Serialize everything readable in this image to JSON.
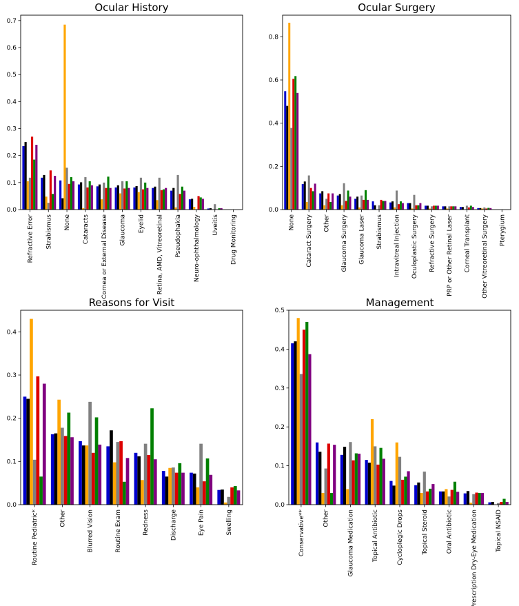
{
  "colors": [
    "#0000cc",
    "#000000",
    "#ffa500",
    "#808080",
    "#dd0000",
    "#008000",
    "#800080"
  ],
  "chart_data": [
    {
      "type": "bar",
      "title": "Ocular History",
      "ylim": [
        0,
        0.72
      ],
      "yticks": [
        0.0,
        0.1,
        0.2,
        0.3,
        0.4,
        0.5,
        0.6,
        0.7
      ],
      "tick_labels": [
        "0.0",
        "0.1",
        "0.2",
        "0.3",
        "0.4",
        "0.5",
        "0.6",
        "0.7"
      ],
      "categories": [
        "Refractive Error",
        "Strabismus",
        "None",
        "Cataracts",
        "Cornea or External Disease",
        "Glaucoma",
        "Eyelid",
        "Retina, AMD, Vitreoretinal",
        "Pseudophakia",
        "Neuro-ophthalmology",
        "Uveitis",
        "Drug Monitoring"
      ],
      "series": [
        {
          "values": [
            0.235,
            0.118,
            0.108,
            0.093,
            0.086,
            0.082,
            0.082,
            0.08,
            0.07,
            0.038,
            0.004,
            0.0
          ]
        },
        {
          "values": [
            0.25,
            0.128,
            0.042,
            0.101,
            0.093,
            0.09,
            0.087,
            0.085,
            0.08,
            0.04,
            0.005,
            0.0
          ]
        },
        {
          "values": [
            0.105,
            0.048,
            0.685,
            0.005,
            0.038,
            0.06,
            0.065,
            0.035,
            0.008,
            0.01,
            0.0,
            0.0
          ]
        },
        {
          "values": [
            0.118,
            0.025,
            0.155,
            0.12,
            0.1,
            0.105,
            0.118,
            0.118,
            0.128,
            0.0,
            0.02,
            0.0
          ]
        },
        {
          "values": [
            0.27,
            0.145,
            0.095,
            0.082,
            0.08,
            0.078,
            0.075,
            0.072,
            0.058,
            0.05,
            0.0,
            0.0
          ]
        },
        {
          "values": [
            0.185,
            0.058,
            0.12,
            0.105,
            0.122,
            0.105,
            0.1,
            0.075,
            0.085,
            0.045,
            0.005,
            0.0
          ]
        },
        {
          "values": [
            0.24,
            0.125,
            0.105,
            0.09,
            0.08,
            0.08,
            0.08,
            0.08,
            0.07,
            0.04,
            0.005,
            0.0
          ]
        }
      ]
    },
    {
      "type": "bar",
      "title": "Ocular Surgery",
      "ylim": [
        0,
        0.9
      ],
      "yticks": [
        0.0,
        0.2,
        0.4,
        0.6,
        0.8
      ],
      "tick_labels": [
        "0.0",
        "0.2",
        "0.4",
        "0.6",
        "0.8"
      ],
      "categories": [
        "None",
        "Cataract Surgery",
        "Other",
        "Glaucoma Surgery",
        "Glaucoma Laser",
        "Strabismus",
        "Intravitreal Injection",
        "Oculoplastic Surgery",
        "Refractive Surgery",
        "PRP or Other Retinal Laser",
        "Corneal Transplant",
        "Other Vitreoretinal Surgery",
        "Pterygium"
      ],
      "series": [
        {
          "values": [
            0.548,
            0.118,
            0.075,
            0.065,
            0.05,
            0.038,
            0.033,
            0.03,
            0.018,
            0.015,
            0.012,
            0.007,
            0.0
          ]
        },
        {
          "values": [
            0.48,
            0.13,
            0.085,
            0.072,
            0.06,
            0.02,
            0.038,
            0.03,
            0.018,
            0.015,
            0.012,
            0.007,
            0.0
          ]
        },
        {
          "values": [
            0.865,
            0.035,
            0.02,
            0.02,
            0.01,
            0.0,
            0.01,
            0.005,
            0.005,
            0.005,
            0.0,
            0.005,
            0.0
          ]
        },
        {
          "values": [
            0.378,
            0.158,
            0.05,
            0.122,
            0.065,
            0.02,
            0.088,
            0.068,
            0.015,
            0.015,
            0.018,
            0.01,
            0.0
          ]
        },
        {
          "values": [
            0.605,
            0.1,
            0.075,
            0.04,
            0.045,
            0.045,
            0.025,
            0.02,
            0.018,
            0.015,
            0.01,
            0.005,
            0.0
          ]
        },
        {
          "values": [
            0.618,
            0.085,
            0.035,
            0.088,
            0.09,
            0.04,
            0.038,
            0.02,
            0.018,
            0.015,
            0.018,
            0.008,
            0.0
          ]
        },
        {
          "values": [
            0.54,
            0.12,
            0.075,
            0.06,
            0.045,
            0.04,
            0.03,
            0.03,
            0.018,
            0.015,
            0.012,
            0.007,
            0.0
          ]
        }
      ]
    },
    {
      "type": "bar",
      "title": "Reasons for Visit",
      "ylim": [
        0,
        0.45
      ],
      "yticks": [
        0.0,
        0.1,
        0.2,
        0.3,
        0.4
      ],
      "tick_labels": [
        "0.0",
        "0.1",
        "0.2",
        "0.3",
        "0.4"
      ],
      "categories": [
        "Routine Pediatric*",
        "Other",
        "Blurred Vision",
        "Routine Exam",
        "Redness",
        "Discharge",
        "Eye Pain",
        "Swelling"
      ],
      "series": [
        {
          "values": [
            0.25,
            0.163,
            0.147,
            0.135,
            0.12,
            0.078,
            0.074,
            0.034
          ]
        },
        {
          "values": [
            0.245,
            0.165,
            0.137,
            0.172,
            0.112,
            0.065,
            0.072,
            0.035
          ]
        },
        {
          "values": [
            0.43,
            0.243,
            0.137,
            0.098,
            0.057,
            0.085,
            0.04,
            0.005
          ]
        },
        {
          "values": [
            0.104,
            0.178,
            0.238,
            0.145,
            0.141,
            0.086,
            0.141,
            0.018
          ]
        },
        {
          "values": [
            0.297,
            0.159,
            0.12,
            0.147,
            0.115,
            0.074,
            0.054,
            0.04
          ]
        },
        {
          "values": [
            0.065,
            0.213,
            0.202,
            0.053,
            0.223,
            0.096,
            0.107,
            0.043
          ]
        },
        {
          "values": [
            0.28,
            0.156,
            0.139,
            0.108,
            0.105,
            0.074,
            0.069,
            0.033
          ]
        }
      ]
    },
    {
      "type": "bar",
      "title": "Management",
      "ylim": [
        0,
        0.5
      ],
      "yticks": [
        0.0,
        0.1,
        0.2,
        0.3,
        0.4,
        0.5
      ],
      "tick_labels": [
        "0.0",
        "0.1",
        "0.2",
        "0.3",
        "0.4",
        "0.5"
      ],
      "categories": [
        "Conservative**",
        "Other",
        "Glaucoma Medication",
        "Topical Antibiotic",
        "Cycloplegic Drops",
        "Topical Steroid",
        "Oral Antibiotic",
        "Prescription Dry-Eye Medication",
        "Topical NSAID"
      ],
      "series": [
        {
          "values": [
            0.415,
            0.16,
            0.128,
            0.115,
            0.061,
            0.05,
            0.034,
            0.029,
            0.006
          ]
        },
        {
          "values": [
            0.42,
            0.136,
            0.149,
            0.108,
            0.049,
            0.057,
            0.034,
            0.035,
            0.007
          ]
        },
        {
          "values": [
            0.48,
            0.03,
            0.04,
            0.22,
            0.16,
            0.03,
            0.04,
            0.005,
            0.0
          ]
        },
        {
          "values": [
            0.336,
            0.093,
            0.161,
            0.15,
            0.123,
            0.085,
            0.021,
            0.027,
            0.004
          ]
        },
        {
          "values": [
            0.45,
            0.157,
            0.114,
            0.103,
            0.064,
            0.034,
            0.038,
            0.031,
            0.007
          ]
        },
        {
          "values": [
            0.47,
            0.03,
            0.132,
            0.146,
            0.072,
            0.041,
            0.059,
            0.03,
            0.015
          ]
        },
        {
          "values": [
            0.387,
            0.154,
            0.131,
            0.118,
            0.086,
            0.053,
            0.033,
            0.03,
            0.007
          ]
        }
      ]
    }
  ]
}
